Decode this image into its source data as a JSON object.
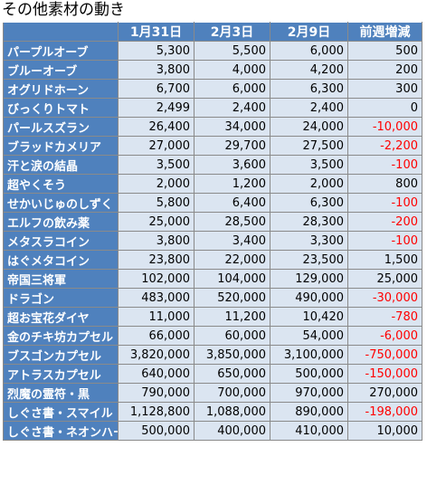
{
  "title": "その他素材の動き",
  "headers": [
    "",
    "1月31日",
    "2月3日",
    "2月9日",
    "前週増減"
  ],
  "rows": [
    {
      "name": "パープルオーブ",
      "v1": "5,300",
      "v2": "5,500",
      "v3": "6,000",
      "diff": "500",
      "neg": false
    },
    {
      "name": "ブルーオーブ",
      "v1": "3,800",
      "v2": "4,000",
      "v3": "4,200",
      "diff": "200",
      "neg": false
    },
    {
      "name": "オグリドホーン",
      "v1": "6,700",
      "v2": "6,000",
      "v3": "6,300",
      "diff": "300",
      "neg": false
    },
    {
      "name": "びっくりトマト",
      "v1": "2,499",
      "v2": "2,400",
      "v3": "2,400",
      "diff": "0",
      "neg": false
    },
    {
      "name": "パールスズラン",
      "v1": "26,400",
      "v2": "34,000",
      "v3": "24,000",
      "diff": "-10,000",
      "neg": true
    },
    {
      "name": "ブラッドカメリア",
      "v1": "27,000",
      "v2": "29,700",
      "v3": "27,500",
      "diff": "-2,200",
      "neg": true
    },
    {
      "name": "汗と涙の結晶",
      "v1": "3,500",
      "v2": "3,600",
      "v3": "3,500",
      "diff": "-100",
      "neg": true
    },
    {
      "name": "超やくそう",
      "v1": "2,000",
      "v2": "1,200",
      "v3": "2,000",
      "diff": "800",
      "neg": false
    },
    {
      "name": "せかいじゅのしずく",
      "v1": "5,800",
      "v2": "6,400",
      "v3": "6,300",
      "diff": "-100",
      "neg": true
    },
    {
      "name": "エルフの飲み薬",
      "v1": "25,000",
      "v2": "28,500",
      "v3": "28,300",
      "diff": "-200",
      "neg": true
    },
    {
      "name": "メタスラコイン",
      "v1": "3,800",
      "v2": "3,400",
      "v3": "3,300",
      "diff": "-100",
      "neg": true
    },
    {
      "name": "はぐメタコイン",
      "v1": "23,800",
      "v2": "22,000",
      "v3": "23,500",
      "diff": "1,500",
      "neg": false
    },
    {
      "name": "帝国三将軍",
      "v1": "102,000",
      "v2": "104,000",
      "v3": "129,000",
      "diff": "25,000",
      "neg": false
    },
    {
      "name": "ドラゴン",
      "v1": "483,000",
      "v2": "520,000",
      "v3": "490,000",
      "diff": "-30,000",
      "neg": true
    },
    {
      "name": "超お宝花ダイヤ",
      "v1": "11,000",
      "v2": "11,200",
      "v3": "10,420",
      "diff": "-780",
      "neg": true
    },
    {
      "name": "金のチキ坊カプセル",
      "v1": "66,000",
      "v2": "60,000",
      "v3": "54,000",
      "diff": "-6,000",
      "neg": true
    },
    {
      "name": "ブスゴンカプセル",
      "v1": "3,820,000",
      "v2": "3,850,000",
      "v3": "3,100,000",
      "diff": "-750,000",
      "neg": true
    },
    {
      "name": "アトラスカプセル",
      "v1": "640,000",
      "v2": "650,000",
      "v3": "500,000",
      "diff": "-150,000",
      "neg": true
    },
    {
      "name": "烈魔の霊符・黒",
      "v1": "790,000",
      "v2": "700,000",
      "v3": "970,000",
      "diff": "270,000",
      "neg": false
    },
    {
      "name": "しぐさ書・スマイル",
      "v1": "1,128,800",
      "v2": "1,088,000",
      "v3": "890,000",
      "diff": "-198,000",
      "neg": true
    },
    {
      "name": "しぐさ書・ネオンハート",
      "v1": "500,000",
      "v2": "400,000",
      "v3": "410,000",
      "diff": "10,000",
      "neg": false
    }
  ]
}
